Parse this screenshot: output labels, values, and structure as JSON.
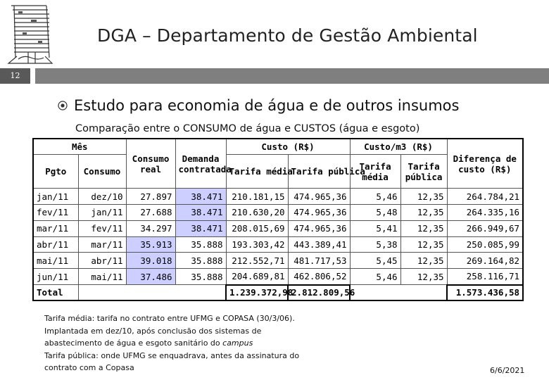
{
  "header": {
    "title": "DGA – Departamento de Gestão Ambiental",
    "slide_number": "12"
  },
  "main": {
    "bullet": "Estudo para economia de água e de outros insumos",
    "subtitle": "Comparação entre o CONSUMO de água e CUSTOS (água e esgoto)"
  },
  "table": {
    "headers": {
      "mes": "Mês",
      "pgto": "Pgto",
      "consumo": "Consumo",
      "consumo_real_1": "Consumo",
      "consumo_real_2": "real",
      "demanda_1": "Demanda",
      "demanda_2": "contratada",
      "custo": "Custo (R$)",
      "tarifa_media": "Tarifa média",
      "tarifa_publica": "Tarifa pública",
      "custo_m3": "Custo/m3 (R$)",
      "tm_1": "Tarifa",
      "tm_2": "média",
      "tp_1": "Tarifa",
      "tp_2": "pública",
      "dif_1": "Diferença de",
      "dif_2": "custo (R$)"
    },
    "rows": [
      {
        "pgto": "jan/11",
        "consumo": "dez/10",
        "real": "27.897",
        "demanda": "38.471",
        "tarifa_media": "210.181,15",
        "tarifa_publica": "474.965,36",
        "m3_media": "5,46",
        "m3_publica": "12,35",
        "diferenca": "264.784,21"
      },
      {
        "pgto": "fev/11",
        "consumo": "jan/11",
        "real": "27.688",
        "demanda": "38.471",
        "tarifa_media": "210.630,20",
        "tarifa_publica": "474.965,36",
        "m3_media": "5,48",
        "m3_publica": "12,35",
        "diferenca": "264.335,16"
      },
      {
        "pgto": "mar/11",
        "consumo": "fev/11",
        "real": "34.297",
        "demanda": "38.471",
        "tarifa_media": "208.015,69",
        "tarifa_publica": "474.965,36",
        "m3_media": "5,41",
        "m3_publica": "12,35",
        "diferenca": "266.949,67"
      },
      {
        "pgto": "abr/11",
        "consumo": "mar/11",
        "real": "35.913",
        "demanda": "35.888",
        "tarifa_media": "193.303,42",
        "tarifa_publica": "443.389,41",
        "m3_media": "5,38",
        "m3_publica": "12,35",
        "diferenca": "250.085,99"
      },
      {
        "pgto": "mai/11",
        "consumo": "abr/11",
        "real": "39.018",
        "demanda": "35.888",
        "tarifa_media": "212.552,71",
        "tarifa_publica": "481.717,53",
        "m3_media": "5,45",
        "m3_publica": "12,35",
        "diferenca": "269.164,82"
      },
      {
        "pgto": "jun/11",
        "consumo": "mai/11",
        "real": "37.486",
        "demanda": "35.888",
        "tarifa_media": "204.689,81",
        "tarifa_publica": "462.806,52",
        "m3_media": "5,46",
        "m3_publica": "12,35",
        "diferenca": "258.116,71"
      }
    ],
    "total": {
      "label": "Total",
      "tarifa_media": "1.239.372,98",
      "tarifa_publica": "2.812.809,56",
      "diferenca": "1.573.436,58"
    },
    "highlight_color": "#cccfff"
  },
  "notes": {
    "line1": "Tarifa média: tarifa no contrato entre UFMG e COPASA (30/3/06).",
    "line2": "Implantada em dez/10, após conclusão dos sistemas de",
    "line3_a": "abastecimento de água e esgoto sanitário do ",
    "line3_b": "campus",
    "line4": "Tarifa pública: onde UFMG se enquadrava, antes da assinatura do",
    "line5": "contrato com a Copasa"
  },
  "footer": {
    "date": "6/6/2021"
  },
  "icons": {
    "logo": "ufmg-building-sketch-logo",
    "bullet": "circled-bullet-icon"
  }
}
